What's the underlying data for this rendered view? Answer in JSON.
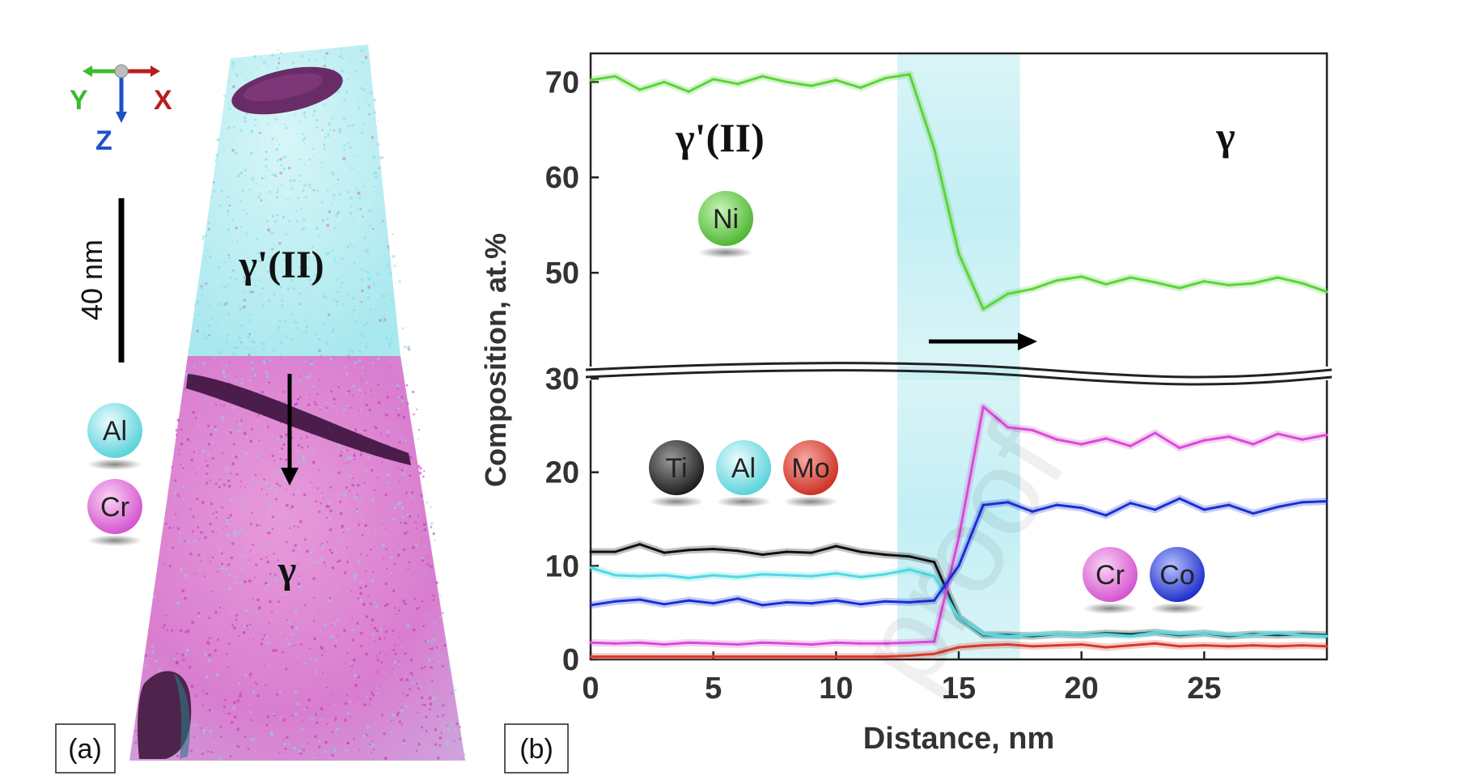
{
  "panel_a": {
    "label": "(a)",
    "axes": {
      "y": "Y",
      "x": "X",
      "z": "Z"
    },
    "scale_bar_label": "40 nm",
    "phase_top": "γ'(II)",
    "phase_bottom": "γ",
    "legend": [
      {
        "element": "Al",
        "color": "#6fdce0"
      },
      {
        "element": "Cr",
        "color": "#e36fd6"
      }
    ]
  },
  "chart_data": {
    "type": "line",
    "panel_label": "(b)",
    "xlabel": "Distance, nm",
    "ylabel": "Composition, at.%",
    "xlim": [
      0,
      30
    ],
    "x_ticks": [
      0,
      5,
      10,
      15,
      20,
      25
    ],
    "upper_ylim": [
      40,
      73
    ],
    "upper_y_ticks": [
      50,
      60,
      70
    ],
    "lower_ylim": [
      0,
      30
    ],
    "lower_y_ticks": [
      0,
      10,
      20,
      30
    ],
    "axis_break": true,
    "interface_band": [
      12.5,
      17.5
    ],
    "annotations": {
      "left_phase": "γ'(II)",
      "right_phase": "γ",
      "arrow": "right"
    },
    "x": [
      0,
      1,
      2,
      3,
      4,
      5,
      6,
      7,
      8,
      9,
      10,
      11,
      12,
      13,
      14,
      15,
      16,
      17,
      18,
      19,
      20,
      21,
      22,
      23,
      24,
      25,
      26,
      27,
      28,
      29,
      30
    ],
    "series": [
      {
        "name": "Ni",
        "color": "#5cd43a",
        "panel": "upper",
        "values": [
          70.2,
          70.6,
          69.2,
          70.0,
          69.0,
          70.3,
          69.8,
          70.6,
          70.0,
          69.6,
          70.2,
          69.4,
          70.4,
          70.8,
          63.0,
          52.0,
          46.2,
          47.8,
          48.3,
          49.2,
          49.6,
          48.8,
          49.5,
          49.0,
          48.4,
          49.1,
          48.7,
          48.9,
          49.5,
          48.9,
          48.0
        ]
      },
      {
        "name": "Ti",
        "color": "#111111",
        "panel": "lower",
        "values": [
          11.5,
          11.5,
          12.3,
          11.4,
          11.7,
          11.8,
          11.6,
          11.2,
          11.5,
          11.4,
          12.1,
          11.5,
          11.2,
          11.0,
          10.4,
          4.5,
          2.6,
          2.6,
          2.5,
          2.7,
          2.6,
          2.8,
          2.7,
          2.9,
          2.6,
          2.8,
          2.5,
          2.7,
          2.6,
          2.7,
          2.6
        ]
      },
      {
        "name": "Al",
        "color": "#4fd9e2",
        "panel": "lower",
        "values": [
          9.8,
          9.0,
          8.9,
          9.0,
          8.7,
          9.0,
          8.8,
          9.1,
          9.0,
          8.9,
          9.2,
          8.8,
          9.1,
          9.6,
          8.9,
          4.5,
          2.7,
          2.5,
          2.6,
          2.7,
          2.6,
          2.7,
          2.5,
          2.9,
          2.7,
          2.8,
          2.6,
          2.6,
          2.8,
          2.6,
          2.5
        ]
      },
      {
        "name": "Mo",
        "color": "#d73a2a",
        "panel": "lower",
        "values": [
          0.3,
          0.3,
          0.3,
          0.3,
          0.3,
          0.3,
          0.3,
          0.3,
          0.3,
          0.3,
          0.3,
          0.3,
          0.3,
          0.4,
          0.6,
          1.3,
          1.5,
          1.6,
          1.4,
          1.5,
          1.6,
          1.3,
          1.5,
          1.7,
          1.4,
          1.5,
          1.4,
          1.5,
          1.4,
          1.5,
          1.4
        ]
      },
      {
        "name": "Cr",
        "color": "#d94ad6",
        "panel": "lower",
        "values": [
          1.8,
          1.7,
          1.8,
          1.6,
          1.8,
          1.7,
          1.6,
          1.8,
          1.7,
          1.6,
          1.8,
          1.7,
          1.7,
          1.8,
          1.9,
          13.0,
          27.0,
          24.8,
          24.5,
          23.5,
          23.0,
          23.6,
          22.8,
          24.2,
          22.6,
          23.4,
          23.8,
          23.0,
          24.1,
          23.5,
          24.0
        ]
      },
      {
        "name": "Co",
        "color": "#1a2fd6",
        "panel": "lower",
        "values": [
          5.8,
          6.2,
          6.4,
          5.9,
          6.3,
          6.0,
          6.5,
          5.8,
          6.1,
          6.0,
          6.3,
          5.9,
          6.2,
          6.1,
          6.3,
          10.0,
          16.5,
          16.8,
          15.8,
          16.5,
          16.2,
          15.4,
          16.7,
          16.0,
          17.2,
          16.0,
          16.5,
          15.6,
          16.3,
          16.8,
          16.9
        ]
      }
    ],
    "legends": [
      {
        "elements": [
          "Ni"
        ],
        "colors": [
          "#5cd43a"
        ]
      },
      {
        "elements": [
          "Ti",
          "Al",
          "Mo"
        ],
        "colors": [
          "#333333",
          "#6fdce0",
          "#e0423a"
        ]
      },
      {
        "elements": [
          "Cr",
          "Co"
        ],
        "colors": [
          "#e36fd6",
          "#2b3fe0"
        ]
      }
    ]
  },
  "watermark": "proof"
}
